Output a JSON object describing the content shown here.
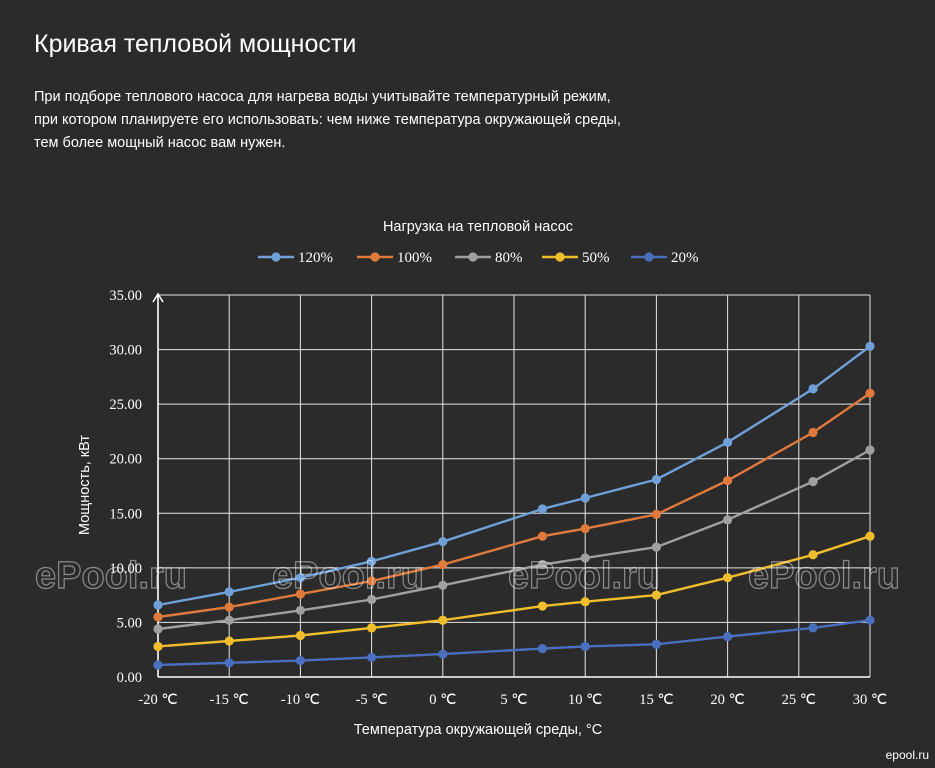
{
  "page": {
    "title": "Кривая тепловой мощности",
    "description": [
      "При подборе теплового насоса для нагрева воды учитывайте температурный режим,",
      "при котором планируете его использовать: чем ниже температура окружающей среды,",
      "тем более мощный насос вам нужен."
    ],
    "watermark": "ePool.ru",
    "corner_mark": "epool.ru"
  },
  "chart_data": {
    "type": "line",
    "title": "Нагрузка на тепловой насос",
    "xlabel": "Температура окружающей среды, °C",
    "ylabel": "Мощность, кВт",
    "xlim": [
      -20,
      30
    ],
    "ylim": [
      0,
      35
    ],
    "x_ticks": [
      "-20 ℃",
      "-15 ℃",
      "-10 ℃",
      "-5 ℃",
      "0 ℃",
      "5 ℃",
      "10 ℃",
      "15 ℃",
      "20 ℃",
      "25 ℃",
      "30 ℃"
    ],
    "y_ticks": [
      "0.00",
      "5.00",
      "10.00",
      "15.00",
      "20.00",
      "25.00",
      "30.00",
      "35.00"
    ],
    "grid": true,
    "legend_position": "top",
    "x": [
      -20,
      -15,
      -10,
      -5,
      0,
      7,
      10,
      15,
      20,
      26,
      30
    ],
    "series": [
      {
        "name": "120%",
        "color": "#6fa0d8",
        "values": [
          6.6,
          7.8,
          9.1,
          10.6,
          12.4,
          15.4,
          16.4,
          18.1,
          21.5,
          26.4,
          30.3
        ]
      },
      {
        "name": "100%",
        "color": "#e07a3c",
        "values": [
          5.5,
          6.4,
          7.6,
          8.8,
          10.3,
          12.9,
          13.6,
          14.9,
          18.0,
          22.4,
          26.0
        ]
      },
      {
        "name": "80%",
        "color": "#a0a0a0",
        "values": [
          4.4,
          5.2,
          6.1,
          7.1,
          8.4,
          10.3,
          10.9,
          11.9,
          14.4,
          17.9,
          20.8
        ]
      },
      {
        "name": "50%",
        "color": "#f0be2c",
        "values": [
          2.8,
          3.3,
          3.8,
          4.5,
          5.2,
          6.5,
          6.9,
          7.5,
          9.1,
          11.2,
          12.9
        ]
      },
      {
        "name": "20%",
        "color": "#4a6fbf",
        "values": [
          1.1,
          1.3,
          1.5,
          1.8,
          2.1,
          2.6,
          2.8,
          3.0,
          3.7,
          4.5,
          5.2
        ]
      }
    ]
  }
}
